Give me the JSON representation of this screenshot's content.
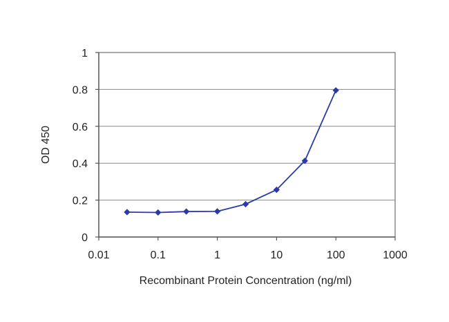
{
  "chart_data": {
    "type": "line",
    "xlabel": "Recombinant Protein Concentration (ng/ml)",
    "ylabel": "OD 450",
    "x_scale": "log",
    "xlim": [
      0.01,
      1000
    ],
    "ylim": [
      0,
      1
    ],
    "x_ticks": [
      "0.01",
      "0.1",
      "1",
      "10",
      "100",
      "1000"
    ],
    "y_ticks": [
      "0",
      "0.2",
      "0.4",
      "0.6",
      "0.8",
      "1"
    ],
    "grid": "horizontal",
    "series": [
      {
        "color": "#2b3aa8",
        "points": [
          {
            "x": 0.03,
            "y": 0.135
          },
          {
            "x": 0.1,
            "y": 0.133
          },
          {
            "x": 0.3,
            "y": 0.138
          },
          {
            "x": 1,
            "y": 0.139
          },
          {
            "x": 3,
            "y": 0.178
          },
          {
            "x": 10,
            "y": 0.256
          },
          {
            "x": 30,
            "y": 0.413
          },
          {
            "x": 100,
            "y": 0.795
          }
        ]
      }
    ]
  }
}
